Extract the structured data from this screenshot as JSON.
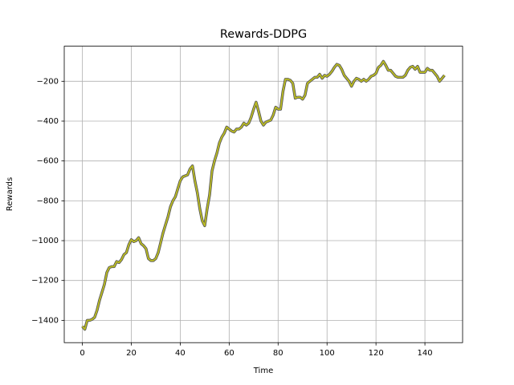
{
  "chart_data": {
    "type": "line",
    "title": "Rewards-DDPG",
    "x_label": "Time",
    "y_label": "Rewards",
    "color": "#bcbd22",
    "grid": true,
    "x": [
      0,
      1,
      2,
      3,
      4,
      5,
      6,
      7,
      8,
      9,
      10,
      11,
      12,
      13,
      14,
      15,
      16,
      17,
      18,
      19,
      20,
      21,
      22,
      23,
      24,
      25,
      26,
      27,
      28,
      29,
      30,
      31,
      32,
      33,
      34,
      35,
      36,
      37,
      38,
      39,
      40,
      41,
      42,
      43,
      44,
      45,
      46,
      47,
      48,
      49,
      50,
      51,
      52,
      53,
      54,
      55,
      56,
      57,
      58,
      59,
      60,
      61,
      62,
      63,
      64,
      65,
      66,
      67,
      68,
      69,
      70,
      71,
      72,
      73,
      74,
      75,
      76,
      77,
      78,
      79,
      80,
      81,
      82,
      83,
      84,
      85,
      86,
      87,
      88,
      89,
      90,
      91,
      92,
      93,
      94,
      95,
      96,
      97,
      98,
      99,
      100,
      101,
      102,
      103,
      104,
      105,
      106,
      107,
      108,
      109,
      110,
      111,
      112,
      113,
      114,
      115,
      116,
      117,
      118,
      119,
      120,
      121,
      122,
      123,
      124,
      125,
      126,
      127,
      128,
      129,
      130,
      131,
      132,
      133,
      134,
      135,
      136,
      137,
      138,
      139,
      140,
      141,
      142,
      143,
      144,
      145,
      146,
      147,
      148
    ],
    "values": [
      -1430,
      -1445,
      -1400,
      -1400,
      -1395,
      -1385,
      -1350,
      -1300,
      -1260,
      -1220,
      -1160,
      -1135,
      -1130,
      -1130,
      -1105,
      -1110,
      -1095,
      -1070,
      -1060,
      -1020,
      -995,
      -1005,
      -1000,
      -985,
      -1015,
      -1025,
      -1040,
      -1090,
      -1100,
      -1100,
      -1090,
      -1060,
      -1010,
      -960,
      -920,
      -880,
      -830,
      -800,
      -780,
      -740,
      -700,
      -680,
      -675,
      -670,
      -640,
      -625,
      -700,
      -760,
      -840,
      -900,
      -925,
      -840,
      -770,
      -650,
      -600,
      -560,
      -510,
      -480,
      -460,
      -430,
      -440,
      -450,
      -455,
      -440,
      -440,
      -430,
      -410,
      -420,
      -410,
      -380,
      -340,
      -305,
      -350,
      -400,
      -420,
      -405,
      -400,
      -395,
      -370,
      -330,
      -340,
      -340,
      -250,
      -190,
      -190,
      -195,
      -210,
      -285,
      -280,
      -280,
      -290,
      -270,
      -210,
      -200,
      -190,
      -180,
      -180,
      -165,
      -185,
      -170,
      -175,
      -165,
      -150,
      -130,
      -115,
      -120,
      -140,
      -170,
      -185,
      -200,
      -225,
      -200,
      -185,
      -190,
      -200,
      -190,
      -200,
      -190,
      -175,
      -170,
      -160,
      -130,
      -120,
      -100,
      -120,
      -145,
      -145,
      -160,
      -175,
      -180,
      -180,
      -180,
      -170,
      -145,
      -130,
      -125,
      -140,
      -125,
      -155,
      -155,
      -155,
      -135,
      -145,
      -145,
      -160,
      -175,
      -200,
      -185,
      -170
    ],
    "xlim": [
      -7.4,
      155.4
    ],
    "ylim": [
      -1512,
      -24
    ],
    "xticks": [
      0,
      20,
      40,
      60,
      80,
      100,
      120,
      140
    ],
    "yticks": [
      {
        "value": -1400,
        "label": "−1400"
      },
      {
        "value": -1200,
        "label": "−1200"
      },
      {
        "value": -1000,
        "label": "−1000"
      },
      {
        "value": -800,
        "label": "−800"
      },
      {
        "value": -600,
        "label": "−600"
      },
      {
        "value": -400,
        "label": "−400"
      },
      {
        "value": -200,
        "label": "−200"
      }
    ]
  }
}
